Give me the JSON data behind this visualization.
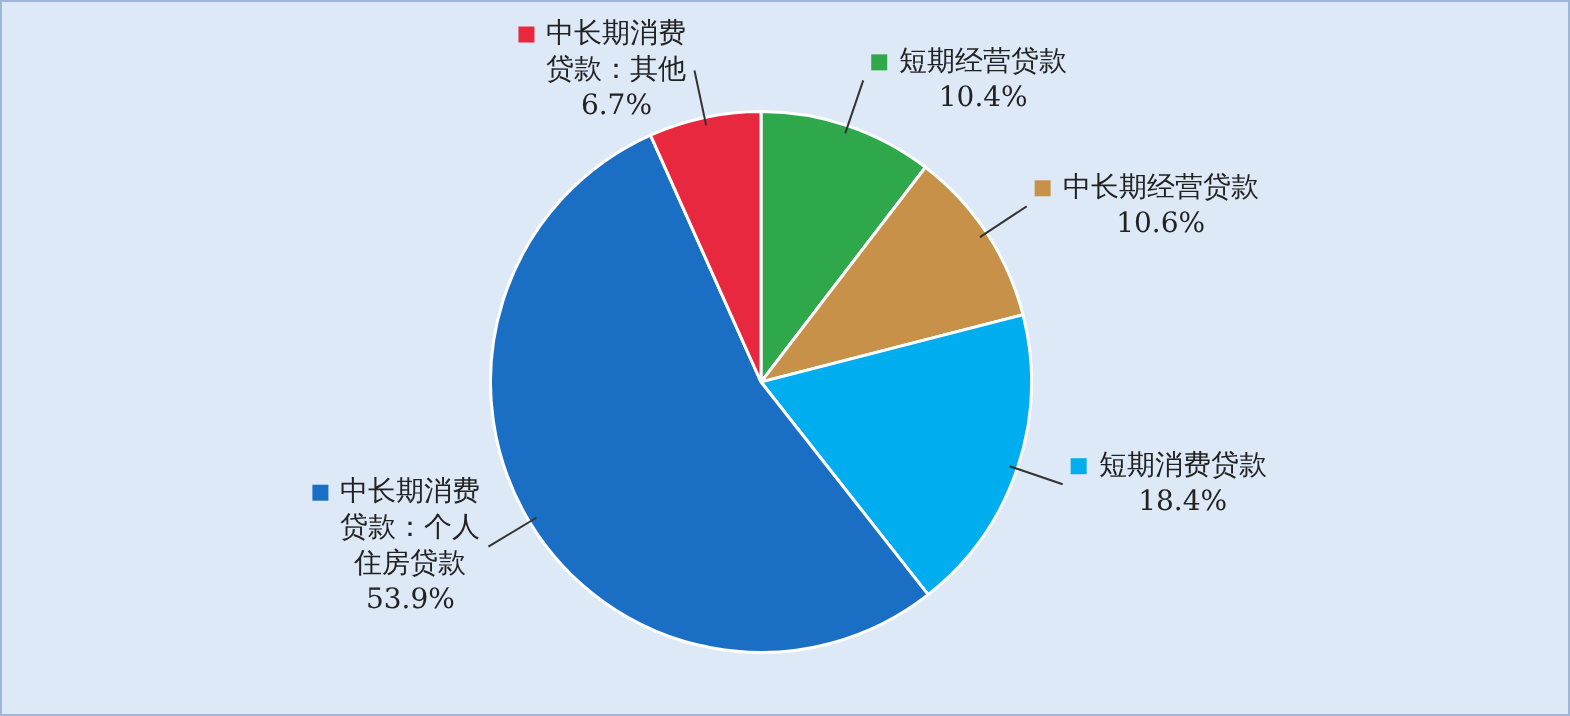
{
  "chart_data": {
    "type": "pie",
    "categories": [
      "短期经营贷款",
      "中长期经营贷款",
      "短期消费贷款",
      "中长期消费贷款：个人住房贷款",
      "中长期消费贷款：其他"
    ],
    "values": [
      10.4,
      10.6,
      18.4,
      53.9,
      6.7
    ],
    "colors": [
      "#2ea84a",
      "#c8914a",
      "#00aeef",
      "#1a6fc4",
      "#e8283f"
    ],
    "value_labels": [
      "10.4%",
      "10.6%",
      "18.4%",
      "53.9%",
      "6.7%"
    ],
    "legend": "right"
  }
}
